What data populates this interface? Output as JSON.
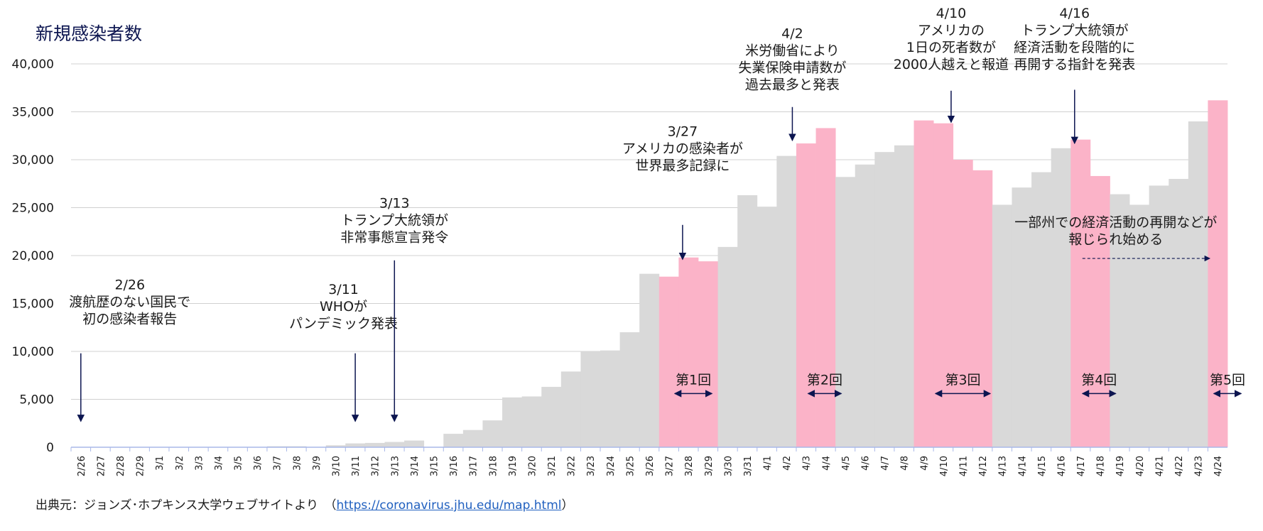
{
  "chart_data": {
    "type": "bar",
    "title": "新規感染者数",
    "ylim": [
      0,
      40000
    ],
    "yticks": [
      0,
      5000,
      10000,
      15000,
      20000,
      25000,
      30000,
      35000,
      40000
    ],
    "ytick_labels": [
      "0",
      "5,000",
      "10,000",
      "15,000",
      "20,000",
      "25,000",
      "30,000",
      "35,000",
      "40,000"
    ],
    "grid": true,
    "colors": {
      "normal": "#d9d9d9",
      "highlight": "#fbb3c8",
      "arrow": "#0c1550",
      "grid": "#d0d0d0",
      "axis": "#a9b8e8"
    },
    "categories": [
      "2/26",
      "2/27",
      "2/28",
      "2/29",
      "3/1",
      "3/2",
      "3/3",
      "3/4",
      "3/5",
      "3/6",
      "3/7",
      "3/8",
      "3/9",
      "3/10",
      "3/11",
      "3/12",
      "3/13",
      "3/14",
      "3/15",
      "3/16",
      "3/17",
      "3/18",
      "3/19",
      "3/20",
      "3/21",
      "3/22",
      "3/23",
      "3/24",
      "3/25",
      "3/26",
      "3/27",
      "3/28",
      "3/29",
      "3/30",
      "3/31",
      "4/1",
      "4/2",
      "4/3",
      "4/4",
      "4/5",
      "4/6",
      "4/7",
      "4/8",
      "4/9",
      "4/10",
      "4/11",
      "4/12",
      "4/13",
      "4/14",
      "4/15",
      "4/16",
      "4/17",
      "4/18",
      "4/19",
      "4/20",
      "4/21",
      "4/22",
      "4/23",
      "4/24"
    ],
    "values": [
      0,
      0,
      0,
      0,
      0,
      0,
      0,
      0,
      0,
      0,
      100,
      100,
      0,
      200,
      400,
      450,
      550,
      700,
      0,
      1400,
      1800,
      2800,
      5200,
      5300,
      6300,
      7900,
      10000,
      10100,
      12000,
      18100,
      17800,
      19800,
      19400,
      20900,
      26300,
      25100,
      30400,
      31700,
      33300,
      28200,
      29500,
      30800,
      31500,
      34100,
      33800,
      30000,
      28900,
      25300,
      27100,
      28700,
      31200,
      32100,
      28300,
      26400,
      25300,
      27300,
      28000,
      34000,
      36200
    ],
    "highlighted": [
      30,
      31,
      32,
      37,
      38,
      43,
      44,
      45,
      46,
      51,
      52,
      58
    ],
    "annotations": [
      {
        "lines": [
          "2/26",
          "渡航歴のない国民で",
          "初の感染者報告"
        ],
        "x_index": 0,
        "text_x_index": 2.5,
        "text_value": 16500,
        "arrow_from": 9800,
        "arrow_to": 2700
      },
      {
        "lines": [
          "3/11",
          "WHOが",
          "パンデミック発表"
        ],
        "x_index": 14,
        "text_x_index": 13.4,
        "text_value": 16000,
        "arrow_from": 9800,
        "arrow_to": 2700
      },
      {
        "lines": [
          "3/13",
          "トランプ大統領が",
          "非常事態宣言発令"
        ],
        "x_index": 16,
        "text_x_index": 16,
        "text_value": 25000,
        "arrow_from": 19500,
        "arrow_to": 2700
      },
      {
        "lines": [
          "3/27",
          "アメリカの感染者が",
          "世界最多記録に"
        ],
        "x_index": 30.7,
        "text_x_index": 30.7,
        "text_value": 32500,
        "arrow_from": 23200,
        "arrow_to": 19600
      },
      {
        "lines": [
          "4/2",
          "米労働省により",
          "失業保険申請数が",
          "過去最多と発表"
        ],
        "x_index": 36.3,
        "text_x_index": 36.3,
        "text_value": 42700,
        "arrow_from": 35500,
        "arrow_to": 32000
      },
      {
        "lines": [
          "4/10",
          "アメリカの",
          "1日の死者数が",
          "2000人越えと報道"
        ],
        "x_index": 44.4,
        "text_x_index": 44.4,
        "text_value": 44800,
        "arrow_from": 37200,
        "arrow_to": 33900
      },
      {
        "lines": [
          "4/16",
          "トランプ大統領が",
          "経済活動を段階的に",
          "再開する指針を発表"
        ],
        "x_index": 50.7,
        "text_x_index": 50.7,
        "text_value": 44800,
        "arrow_from": 37300,
        "arrow_to": 31700
      }
    ],
    "rounds": [
      {
        "label": "第1回",
        "x_from": 30.3,
        "x_to": 32.2
      },
      {
        "label": "第2回",
        "x_from": 37.1,
        "x_to": 38.8
      },
      {
        "label": "第3回",
        "x_from": 43.6,
        "x_to": 46.4
      },
      {
        "label": "第4回",
        "x_from": 51.1,
        "x_to": 52.8
      },
      {
        "label": "第5回",
        "x_from": 57.8,
        "x_to": 59.2
      }
    ],
    "reopening_note": {
      "lines": [
        "一部州での経済活動の再開などが",
        "報じられ始める"
      ],
      "text_x_index": 52.8,
      "text_value": 23000,
      "x_from": 51.1,
      "x_to": 57.6,
      "arrow_value": 19700
    }
  },
  "source": {
    "prefix": "出典元：ジョンズ･ホプキンス大学ウェブサイトより　（",
    "link": "https://coronavirus.jhu.edu/map.html",
    "suffix": "）"
  }
}
